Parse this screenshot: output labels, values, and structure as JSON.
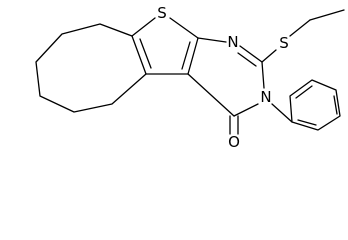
{
  "atoms": [
    "S",
    "N",
    "S",
    "N",
    "O"
  ]
}
